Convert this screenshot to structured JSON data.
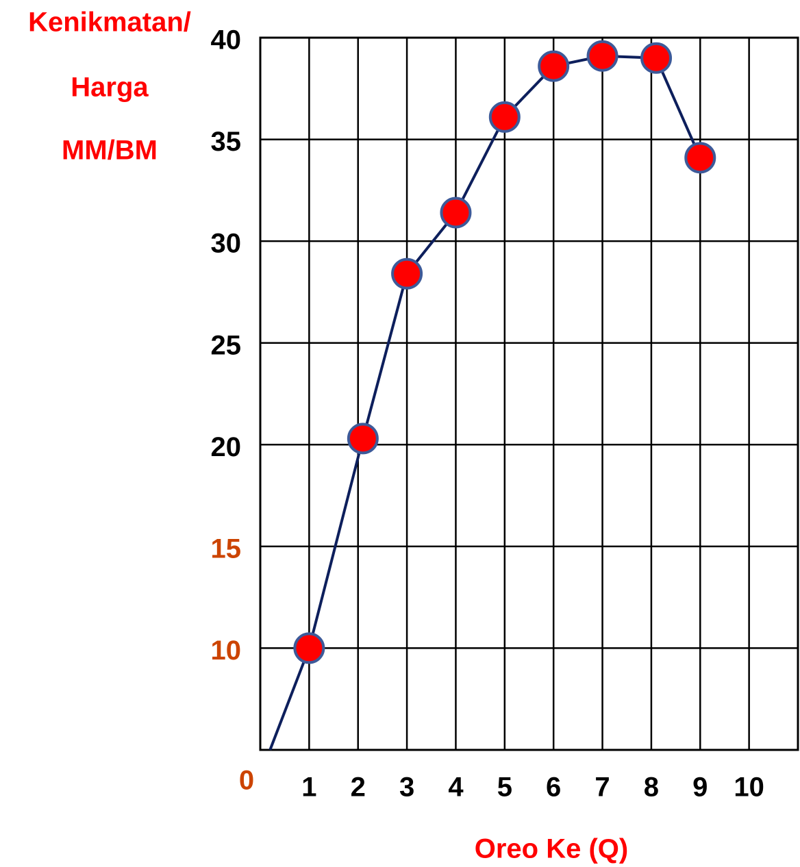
{
  "chart_data": {
    "type": "line",
    "y_title_lines": [
      "Kenikmatan/",
      "Harga",
      "MM/BM"
    ],
    "x_label": "Oreo Ke (Q)",
    "title_color": "#ff0000",
    "x": [
      0.2,
      1,
      2.1,
      3,
      4,
      5,
      6,
      7,
      8.1,
      9
    ],
    "series": [
      {
        "color": "#0d1f5c",
        "marker_color": "#ff0000",
        "marker_edge": "#3d5a99",
        "markers": [
          false,
          true,
          true,
          true,
          true,
          true,
          true,
          true,
          true,
          true
        ],
        "values": [
          5,
          10,
          20.3,
          28.4,
          31.4,
          36.1,
          38.6,
          39.1,
          39,
          34.1
        ]
      }
    ],
    "xlim": [
      0,
      11
    ],
    "xticks": [
      0,
      1,
      2,
      3,
      4,
      5,
      6,
      7,
      8,
      9,
      10
    ],
    "xtick_label_colors": [
      "#cc4400",
      "#000000",
      "#000000",
      "#000000",
      "#000000",
      "#000000",
      "#000000",
      "#000000",
      "#000000",
      "#000000",
      "#000000"
    ],
    "ylim": [
      5,
      40
    ],
    "yticks": [
      10,
      15,
      20,
      25,
      30,
      35,
      40
    ],
    "ytick_label_colors": [
      "#cc4400",
      "#cc4400",
      "#000000",
      "#000000",
      "#000000",
      "#000000",
      "#000000"
    ],
    "grid": true
  }
}
